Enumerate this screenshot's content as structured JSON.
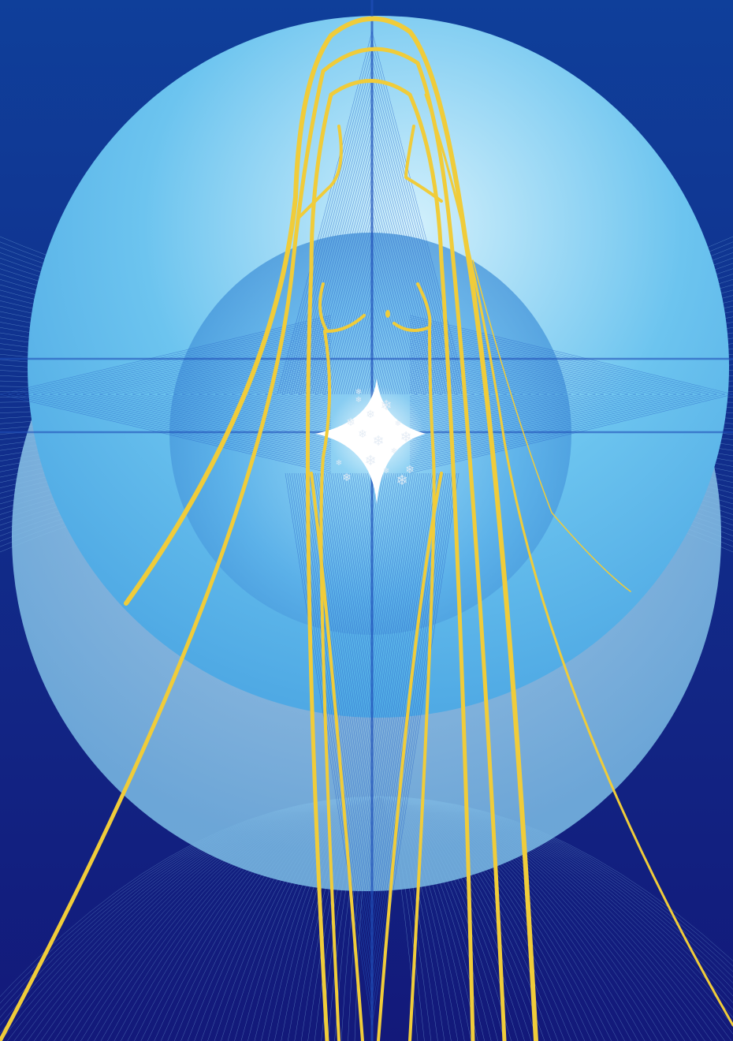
{
  "artwork": {
    "colors": {
      "background_top": "#0f3f9a",
      "background_bottom": "#13197a",
      "outer_sphere_center": "#c8ecfb",
      "outer_sphere_edge": "#4fb3e8",
      "inner_sphere_center": "#8fd3f5",
      "inner_sphere_edge": "#3c8fd6",
      "string_lines": "#2f6fd1",
      "fine_lines": "#9fd6f5",
      "figure_outline": "#f0cc3a",
      "star_glow": "#ffffff",
      "snowflakes": "#dfe8f2"
    }
  }
}
